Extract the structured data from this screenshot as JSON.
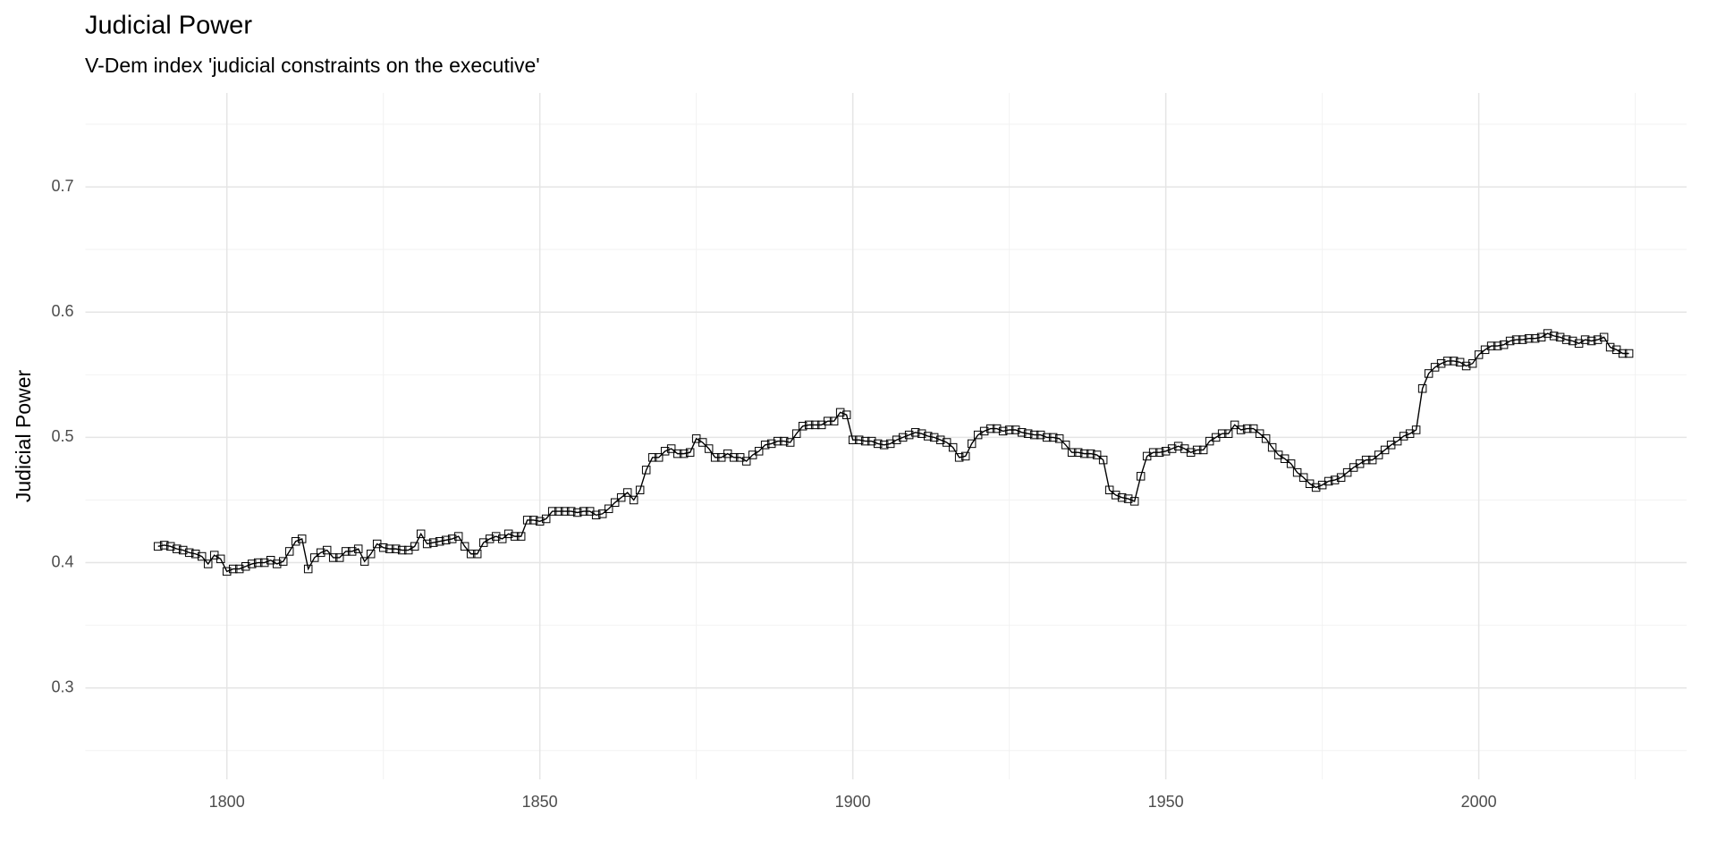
{
  "chart_data": {
    "type": "line",
    "title": "Judicial Power",
    "subtitle": "V-Dem index 'judicial constraints on the executive'",
    "y_label": "Judicial Power",
    "x": [
      1789,
      1790,
      1791,
      1792,
      1793,
      1794,
      1795,
      1796,
      1797,
      1798,
      1799,
      1800,
      1801,
      1802,
      1803,
      1804,
      1805,
      1806,
      1807,
      1808,
      1809,
      1810,
      1811,
      1812,
      1813,
      1814,
      1815,
      1816,
      1817,
      1818,
      1819,
      1820,
      1821,
      1822,
      1823,
      1824,
      1825,
      1826,
      1827,
      1828,
      1829,
      1830,
      1831,
      1832,
      1833,
      1834,
      1835,
      1836,
      1837,
      1838,
      1839,
      1840,
      1841,
      1842,
      1843,
      1844,
      1845,
      1846,
      1847,
      1848,
      1849,
      1850,
      1851,
      1852,
      1853,
      1854,
      1855,
      1856,
      1857,
      1858,
      1859,
      1860,
      1861,
      1862,
      1863,
      1864,
      1865,
      1866,
      1867,
      1868,
      1869,
      1870,
      1871,
      1872,
      1873,
      1874,
      1875,
      1876,
      1877,
      1878,
      1879,
      1880,
      1881,
      1882,
      1883,
      1884,
      1885,
      1886,
      1887,
      1888,
      1889,
      1890,
      1891,
      1892,
      1893,
      1894,
      1895,
      1896,
      1897,
      1898,
      1899,
      1900,
      1901,
      1902,
      1903,
      1904,
      1905,
      1906,
      1907,
      1908,
      1909,
      1910,
      1911,
      1912,
      1913,
      1914,
      1915,
      1916,
      1917,
      1918,
      1919,
      1920,
      1921,
      1922,
      1923,
      1924,
      1925,
      1926,
      1927,
      1928,
      1929,
      1930,
      1931,
      1932,
      1933,
      1934,
      1935,
      1936,
      1937,
      1938,
      1939,
      1940,
      1941,
      1942,
      1943,
      1944,
      1945,
      1946,
      1947,
      1948,
      1949,
      1950,
      1951,
      1952,
      1953,
      1954,
      1955,
      1956,
      1957,
      1958,
      1959,
      1960,
      1961,
      1962,
      1963,
      1964,
      1965,
      1966,
      1967,
      1968,
      1969,
      1970,
      1971,
      1972,
      1973,
      1974,
      1975,
      1976,
      1977,
      1978,
      1979,
      1980,
      1981,
      1982,
      1983,
      1984,
      1985,
      1986,
      1987,
      1988,
      1989,
      1990,
      1991,
      1992,
      1993,
      1994,
      1995,
      1996,
      1997,
      1998,
      1999,
      2000,
      2001,
      2002,
      2003,
      2004,
      2005,
      2006,
      2007,
      2008,
      2009,
      2010,
      2011,
      2012,
      2013,
      2014,
      2015,
      2016,
      2017,
      2018,
      2019,
      2020,
      2021,
      2022,
      2023,
      2024
    ],
    "series": [
      {
        "color": "#000000",
        "values": [
          0.413,
          0.414,
          0.413,
          0.411,
          0.41,
          0.408,
          0.407,
          0.405,
          0.399,
          0.406,
          0.403,
          0.393,
          0.395,
          0.395,
          0.397,
          0.399,
          0.4,
          0.4,
          0.402,
          0.399,
          0.401,
          0.409,
          0.417,
          0.419,
          0.395,
          0.404,
          0.408,
          0.41,
          0.404,
          0.404,
          0.409,
          0.409,
          0.411,
          0.401,
          0.407,
          0.415,
          0.412,
          0.411,
          0.411,
          0.41,
          0.41,
          0.413,
          0.423,
          0.415,
          0.416,
          0.417,
          0.418,
          0.419,
          0.421,
          0.413,
          0.407,
          0.407,
          0.416,
          0.419,
          0.421,
          0.419,
          0.423,
          0.421,
          0.421,
          0.434,
          0.434,
          0.433,
          0.435,
          0.441,
          0.441,
          0.441,
          0.441,
          0.44,
          0.441,
          0.441,
          0.438,
          0.439,
          0.443,
          0.448,
          0.452,
          0.456,
          0.45,
          0.458,
          0.474,
          0.484,
          0.484,
          0.489,
          0.491,
          0.487,
          0.487,
          0.488,
          0.499,
          0.496,
          0.491,
          0.484,
          0.484,
          0.487,
          0.484,
          0.484,
          0.481,
          0.486,
          0.489,
          0.494,
          0.495,
          0.497,
          0.497,
          0.496,
          0.503,
          0.509,
          0.51,
          0.51,
          0.51,
          0.513,
          0.513,
          0.52,
          0.518,
          0.498,
          0.498,
          0.497,
          0.497,
          0.495,
          0.494,
          0.495,
          0.498,
          0.5,
          0.502,
          0.504,
          0.503,
          0.501,
          0.5,
          0.498,
          0.496,
          0.492,
          0.484,
          0.485,
          0.495,
          0.502,
          0.505,
          0.507,
          0.507,
          0.505,
          0.506,
          0.506,
          0.504,
          0.503,
          0.502,
          0.502,
          0.5,
          0.5,
          0.499,
          0.494,
          0.488,
          0.488,
          0.487,
          0.487,
          0.486,
          0.482,
          0.458,
          0.454,
          0.452,
          0.451,
          0.449,
          0.469,
          0.485,
          0.488,
          0.488,
          0.489,
          0.491,
          0.493,
          0.491,
          0.488,
          0.49,
          0.49,
          0.497,
          0.5,
          0.503,
          0.503,
          0.51,
          0.506,
          0.507,
          0.507,
          0.503,
          0.499,
          0.492,
          0.486,
          0.483,
          0.479,
          0.472,
          0.468,
          0.463,
          0.46,
          0.462,
          0.465,
          0.466,
          0.468,
          0.472,
          0.476,
          0.479,
          0.482,
          0.482,
          0.486,
          0.49,
          0.494,
          0.497,
          0.501,
          0.503,
          0.506,
          0.539,
          0.551,
          0.556,
          0.559,
          0.561,
          0.561,
          0.56,
          0.557,
          0.559,
          0.566,
          0.57,
          0.573,
          0.573,
          0.574,
          0.577,
          0.578,
          0.578,
          0.579,
          0.579,
          0.58,
          0.583,
          0.581,
          0.58,
          0.578,
          0.577,
          0.575,
          0.578,
          0.577,
          0.578,
          0.58,
          0.572,
          0.57,
          0.567,
          0.567
        ]
      }
    ],
    "xlim": [
      1777.4,
      2033.2
    ],
    "ylim": [
      0.227,
      0.775
    ],
    "xticks": [
      1800,
      1850,
      1900,
      1950,
      2000
    ],
    "yticks": [
      0.3,
      0.4,
      0.5,
      0.6,
      0.7
    ],
    "x_minor_ticks": [
      1825,
      1875,
      1925,
      1975,
      2025
    ],
    "y_minor_ticks": [
      0.25,
      0.35,
      0.45,
      0.55,
      0.65,
      0.75
    ],
    "grid": true,
    "marker": "square"
  }
}
